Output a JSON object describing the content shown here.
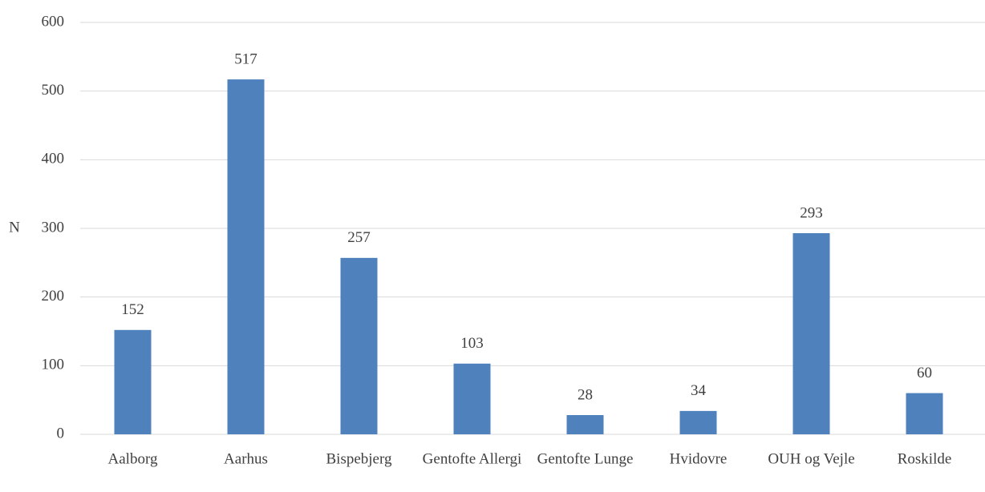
{
  "chart_data": {
    "type": "bar",
    "ylabel": "N",
    "categories": [
      "Aalborg",
      "Aarhus",
      "Bispebjerg",
      "Gentofte Allergi",
      "Gentofte Lunge",
      "Hvidovre",
      "OUH og Vejle",
      "Roskilde"
    ],
    "values": [
      152,
      517,
      257,
      103,
      28,
      34,
      293,
      60
    ],
    "color": "#4f81bd",
    "ylim": [
      0,
      600
    ],
    "yticks": [
      0,
      100,
      200,
      300,
      400,
      500,
      600
    ],
    "grid": true
  }
}
